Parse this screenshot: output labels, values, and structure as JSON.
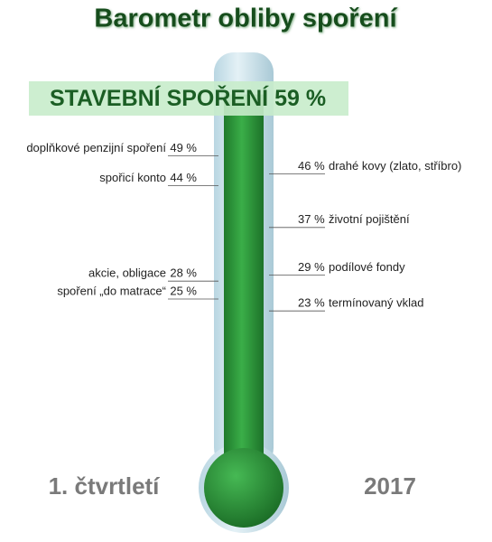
{
  "chart_data": {
    "type": "thermometer",
    "title": "Barometr obliby spoření",
    "headline": {
      "name": "STAVEBNÍ SPOŘENÍ",
      "value": 59,
      "value_label": "59 %"
    },
    "ylim": [
      0,
      65
    ],
    "color": "#2e9a3c",
    "series": [
      {
        "name": "left",
        "categories": [
          "doplňkové penzijní spoření",
          "spořicí konto",
          "akcie, obligace",
          "spoření „do matrace“"
        ],
        "values": [
          49,
          44,
          28,
          25
        ],
        "value_labels": [
          "49 %",
          "44 %",
          "28 %",
          "25 %"
        ]
      },
      {
        "name": "right",
        "categories": [
          "drahé kovy (zlato, stříbro)",
          "životní pojištění",
          "podílové fondy",
          "termínovaný vklad"
        ],
        "values": [
          46,
          37,
          29,
          23
        ],
        "value_labels": [
          "46 %",
          "37 %",
          "29 %",
          "23 %"
        ]
      }
    ],
    "period": "1. čtvrtletí",
    "year": "2017"
  }
}
